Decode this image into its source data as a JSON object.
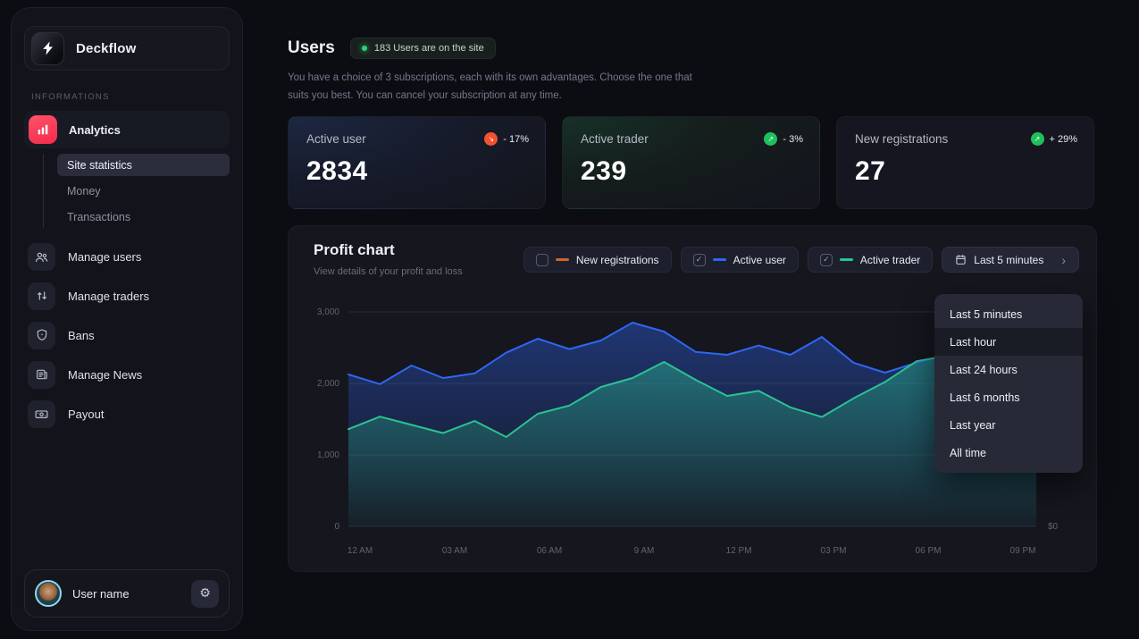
{
  "app": {
    "name": "Deckflow"
  },
  "sidebar": {
    "section_label": "INFORMATIONS",
    "analytics_label": "Analytics",
    "sub_items": [
      {
        "label": "Site statistics",
        "active": true
      },
      {
        "label": "Money",
        "active": false
      },
      {
        "label": "Transactions",
        "active": false
      }
    ],
    "items": [
      {
        "label": "Manage users",
        "icon": "users-icon"
      },
      {
        "label": "Manage traders",
        "icon": "arrows-up-down-icon"
      },
      {
        "label": "Bans",
        "icon": "shield-icon"
      },
      {
        "label": "Manage News",
        "icon": "news-icon"
      },
      {
        "label": "Payout",
        "icon": "banknote-icon"
      }
    ],
    "user": {
      "name": "User name",
      "settings_icon": "⚙"
    }
  },
  "header": {
    "title": "Users",
    "badge_text": "183 Users are on the site",
    "description_line1": "You have a choice of 3 subscriptions, each with its own advantages. Choose the one that",
    "description_line2": "suits you best. You can cancel your subscription at any time."
  },
  "stats": [
    {
      "label": "Active user",
      "value": "2834",
      "change": "- 17%",
      "arrow": "↘",
      "circle_color": "#f4512e"
    },
    {
      "label": "Active trader",
      "value": "239",
      "change": "- 3%",
      "arrow": "↗",
      "circle_color": "#1fc05c"
    },
    {
      "label": "New registrations",
      "value": "27",
      "change": "+ 29%",
      "arrow": "↗",
      "circle_color": "#1fc05c"
    }
  ],
  "profit_chart": {
    "title": "Profit chart",
    "subtitle": "View details of your profit and loss",
    "legend": [
      {
        "label": "New registrations",
        "checked": false,
        "color": "#cf6430"
      },
      {
        "label": "Active user",
        "checked": true,
        "color": "#2f66f2"
      },
      {
        "label": "Active trader",
        "checked": true,
        "color": "#29c492"
      }
    ],
    "range_button": {
      "label": "Last 5 minutes",
      "icon": "calendar-icon",
      "chevron": "›"
    },
    "dropdown": {
      "options": [
        "Last 5 minutes",
        "Last hour",
        "Last 24 hours",
        "Last 6 months",
        "Last year",
        "All time"
      ],
      "highlighted": "Last hour"
    }
  },
  "chart_data": {
    "type": "area",
    "title": "Profit chart",
    "x_start": "12 AM",
    "x_tick_labels": [
      "12 AM",
      "03 AM",
      "06 AM",
      "9 AM",
      "12 PM",
      "03 PM",
      "06 PM",
      "09 PM"
    ],
    "y_tick_values": [
      3000,
      2000,
      1000,
      0
    ],
    "y_tick_labels": [
      "3,000",
      "2,000",
      "1,000",
      "0"
    ],
    "ylim": [
      0,
      3000
    ],
    "grid": true,
    "right_axis_label": "$0",
    "points_per_hour": 1,
    "series": [
      {
        "name": "Active user",
        "color": "#2f66f2",
        "values": [
          2125,
          1990,
          2250,
          2075,
          2140,
          2430,
          2625,
          2480,
          2600,
          2850,
          2725,
          2440,
          2400,
          2530,
          2400,
          2650,
          2290,
          2150,
          2290,
          2400,
          2450,
          2480,
          2520
        ]
      },
      {
        "name": "Active trader",
        "color": "#29c492",
        "values": [
          1360,
          1535,
          1420,
          1305,
          1475,
          1250,
          1575,
          1690,
          1950,
          2075,
          2300,
          2050,
          1825,
          1895,
          1665,
          1530,
          1790,
          2020,
          2310,
          2390,
          2440,
          2480,
          2530
        ]
      }
    ]
  }
}
